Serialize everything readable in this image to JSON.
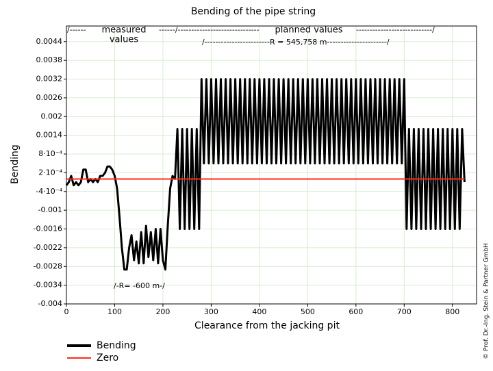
{
  "chart_data": {
    "type": "line",
    "title": "Bending of the pipe string",
    "x_label": "Clearance from the jacking pit",
    "y_label": "Bending",
    "copyright": "© Prof. Dr.-Ing. Stein & Partner GmbH",
    "annotations": [
      "/------",
      "measured",
      "values",
      "------/------------------------------",
      "planned values",
      "----------------------------/",
      "/------------------------R = 545,758 m----------------------/",
      "/-R= -600 m-/"
    ],
    "xlim": [
      0,
      850
    ],
    "ylim": [
      -0.004,
      0.0049
    ],
    "xticks": [
      0,
      100,
      200,
      300,
      400,
      500,
      600,
      700,
      800
    ],
    "yticks": [
      0.0044,
      0.0038,
      0.0032,
      0.0026,
      0.002,
      0.0014,
      {
        "value": 0.0008,
        "label": "8·10⁻⁴"
      },
      {
        "value": 0.0002,
        "label": "2·10⁻⁴"
      },
      {
        "value": -0.0004,
        "label": "-4·10⁻⁴"
      },
      -0.001,
      -0.0016,
      -0.0022,
      -0.0028,
      -0.0034,
      -0.004
    ],
    "grid": true,
    "series": [
      {
        "name": "Bending",
        "color": "#000000",
        "x": [
          0,
          5,
          10,
          15,
          20,
          25,
          30,
          35,
          40,
          45,
          50,
          55,
          60,
          65,
          70,
          75,
          80,
          85,
          90,
          95,
          100,
          105,
          110,
          115,
          120,
          125,
          130,
          135,
          140,
          145,
          150,
          155,
          160,
          165,
          170,
          175,
          180,
          185,
          190,
          195,
          200,
          205,
          210,
          215,
          220,
          225,
          230,
          235,
          240,
          245,
          250,
          255,
          260,
          265,
          270,
          275,
          280,
          285,
          290,
          295,
          300,
          305,
          310,
          315,
          320,
          325,
          330,
          335,
          340,
          345,
          350,
          355,
          360,
          365,
          370,
          375,
          380,
          385,
          390,
          395,
          400,
          405,
          410,
          415,
          420,
          425,
          430,
          435,
          440,
          445,
          450,
          455,
          460,
          465,
          470,
          475,
          480,
          485,
          490,
          495,
          500,
          505,
          510,
          515,
          520,
          525,
          530,
          535,
          540,
          545,
          550,
          555,
          560,
          565,
          570,
          575,
          580,
          585,
          590,
          595,
          600,
          605,
          610,
          615,
          620,
          625,
          630,
          635,
          640,
          645,
          650,
          655,
          660,
          665,
          670,
          675,
          680,
          685,
          690,
          695,
          700,
          705,
          710,
          715,
          720,
          725,
          730,
          735,
          740,
          745,
          750,
          755,
          760,
          765,
          770,
          775,
          780,
          785,
          790,
          795,
          800,
          805,
          810,
          815,
          820,
          825
        ],
        "values": [
          -0.0002,
          -0.0001,
          0.0001,
          -0.0002,
          -0.0001,
          -0.0002,
          -0.0001,
          0.0003,
          0.0003,
          -0.0001,
          0.0,
          -0.0001,
          0.0,
          -0.0001,
          0.0001,
          0.0001,
          0.0002,
          0.0004,
          0.0004,
          0.0003,
          0.0001,
          -0.0003,
          -0.0012,
          -0.0022,
          -0.0029,
          -0.0029,
          -0.0022,
          -0.0018,
          -0.0026,
          -0.002,
          -0.0027,
          -0.0017,
          -0.0027,
          -0.0015,
          -0.0025,
          -0.0017,
          -0.0026,
          -0.0016,
          -0.0027,
          -0.0016,
          -0.0026,
          -0.0029,
          -0.0015,
          -0.0003,
          0.0001,
          0.0,
          0.0016,
          -0.0016,
          0.0016,
          -0.0016,
          0.0016,
          -0.0016,
          0.0016,
          -0.0016,
          0.0016,
          -0.0016,
          0.0032,
          0.0005,
          0.0032,
          0.0005,
          0.0032,
          0.0005,
          0.0032,
          0.0005,
          0.0032,
          0.0005,
          0.0032,
          0.0005,
          0.0032,
          0.0005,
          0.0032,
          0.0005,
          0.0032,
          0.0005,
          0.0032,
          0.0005,
          0.0032,
          0.0005,
          0.0032,
          0.0005,
          0.0032,
          0.0005,
          0.0032,
          0.0005,
          0.0032,
          0.0005,
          0.0032,
          0.0005,
          0.0032,
          0.0005,
          0.0032,
          0.0005,
          0.0032,
          0.0005,
          0.0032,
          0.0005,
          0.0032,
          0.0005,
          0.0032,
          0.0005,
          0.0032,
          0.0005,
          0.0032,
          0.0005,
          0.0032,
          0.0005,
          0.0032,
          0.0005,
          0.0032,
          0.0005,
          0.0032,
          0.0005,
          0.0032,
          0.0005,
          0.0032,
          0.0005,
          0.0032,
          0.0005,
          0.0032,
          0.0005,
          0.0032,
          0.0005,
          0.0032,
          0.0005,
          0.0032,
          0.0005,
          0.0032,
          0.0005,
          0.0032,
          0.0005,
          0.0032,
          0.0005,
          0.0032,
          0.0005,
          0.0032,
          0.0005,
          0.0032,
          0.0005,
          0.0032,
          0.0005,
          0.0032,
          -0.0016,
          0.0016,
          -0.0016,
          0.0016,
          -0.0016,
          0.0016,
          -0.0016,
          0.0016,
          -0.0016,
          0.0016,
          -0.0016,
          0.0016,
          -0.0016,
          0.0016,
          -0.0016,
          0.0016,
          -0.0016,
          0.0016,
          -0.0016,
          0.0016,
          -0.0016,
          0.0016,
          -0.0016,
          0.0016,
          -0.0001
        ]
      },
      {
        "name": "Zero",
        "color": "#ff2a1a",
        "x": [
          0,
          825
        ],
        "values": [
          0,
          0
        ]
      }
    ]
  }
}
